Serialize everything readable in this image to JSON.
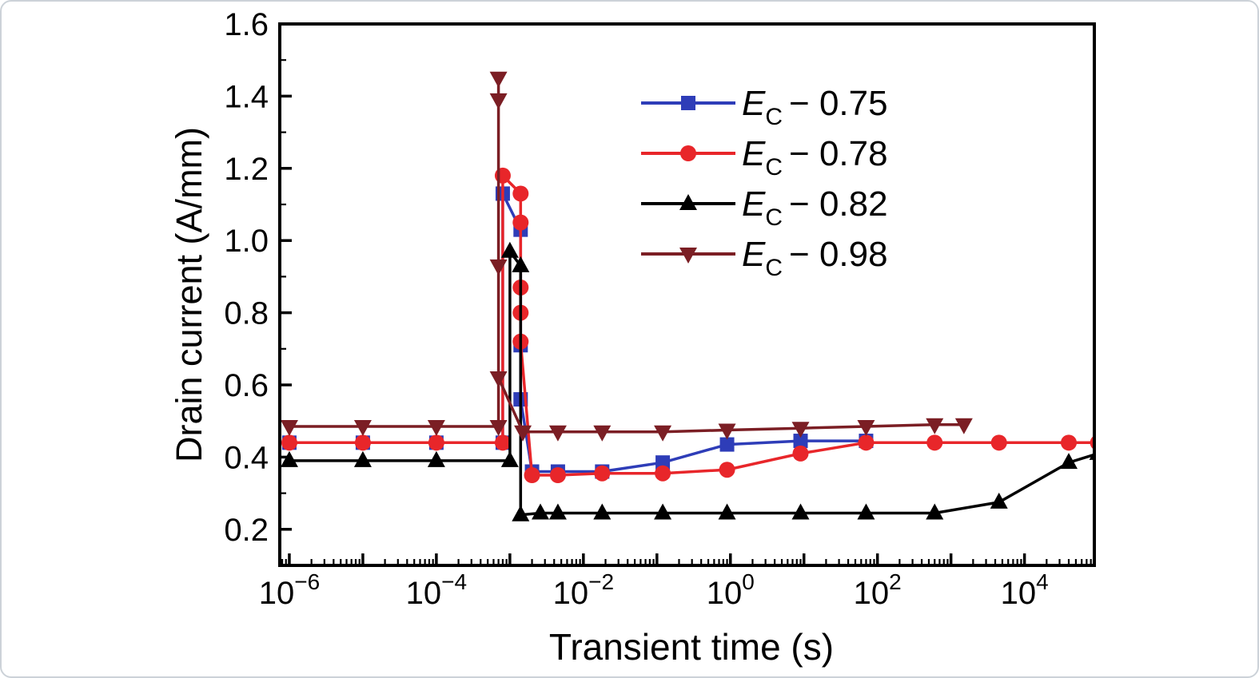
{
  "figure": {
    "background": "#ffffff",
    "frame_color": "#000000",
    "outer_border_color": "#ccd2d8"
  },
  "chart_data": {
    "type": "line",
    "title": "",
    "xlabel": "Transient time (s)",
    "ylabel": "Drain current (A/mm)",
    "x_scale": "log",
    "grid": false,
    "legend_position": "upper-right-inside",
    "xlim_log": [
      -6.13,
      4.95
    ],
    "ylim": [
      0.1,
      1.6
    ],
    "x_tick_exponents": [
      -6,
      -4,
      -2,
      0,
      2,
      4
    ],
    "x_tick_labels": [
      "10⁻⁶",
      "10⁻⁴",
      "10⁻²",
      "10⁰",
      "10²",
      "10⁴"
    ],
    "y_ticks": [
      0.2,
      0.4,
      0.6,
      0.8,
      1.0,
      1.2,
      1.4,
      1.6
    ],
    "series": [
      {
        "name": "Ec-0.75",
        "label": {
          "base": "E",
          "sub": "C",
          "suffix": "− 0.75"
        },
        "color": "#2e3db8",
        "marker": "square",
        "points": [
          [
            1e-06,
            0.44
          ],
          [
            1e-05,
            0.44
          ],
          [
            0.0001,
            0.44
          ],
          [
            0.0008,
            0.44
          ],
          [
            0.0008,
            1.13
          ],
          [
            0.0014,
            1.03
          ],
          [
            0.0014,
            0.71
          ],
          [
            0.0014,
            0.56
          ],
          [
            0.002,
            0.36
          ],
          [
            0.0045,
            0.36
          ],
          [
            0.018,
            0.36
          ],
          [
            0.12,
            0.385
          ],
          [
            0.9,
            0.435
          ],
          [
            9,
            0.445
          ],
          [
            70,
            0.445
          ]
        ]
      },
      {
        "name": "Ec-0.78",
        "label": {
          "base": "E",
          "sub": "C",
          "suffix": "− 0.78"
        },
        "color": "#e8262a",
        "marker": "circle",
        "points": [
          [
            1e-06,
            0.44
          ],
          [
            1e-05,
            0.44
          ],
          [
            0.0001,
            0.44
          ],
          [
            0.0008,
            0.44
          ],
          [
            0.0008,
            1.18
          ],
          [
            0.0014,
            1.13
          ],
          [
            0.0014,
            1.05
          ],
          [
            0.0014,
            0.87
          ],
          [
            0.0014,
            0.8
          ],
          [
            0.0014,
            0.72
          ],
          [
            0.002,
            0.35
          ],
          [
            0.0045,
            0.35
          ],
          [
            0.018,
            0.355
          ],
          [
            0.12,
            0.355
          ],
          [
            0.9,
            0.365
          ],
          [
            9,
            0.41
          ],
          [
            70,
            0.44
          ],
          [
            600.0,
            0.44
          ],
          [
            4500.0,
            0.44
          ],
          [
            40000.0,
            0.44
          ],
          [
            100000.0,
            0.44
          ]
        ]
      },
      {
        "name": "Ec-0.82",
        "label": {
          "base": "E",
          "sub": "C",
          "suffix": "− 0.82"
        },
        "color": "#000000",
        "marker": "triangle-up",
        "points": [
          [
            1e-06,
            0.39
          ],
          [
            1e-05,
            0.39
          ],
          [
            0.0001,
            0.39
          ],
          [
            0.001,
            0.39
          ],
          [
            0.001,
            0.97
          ],
          [
            0.0014,
            0.93
          ],
          [
            0.0014,
            0.24
          ],
          [
            0.0026,
            0.245
          ],
          [
            0.0045,
            0.245
          ],
          [
            0.018,
            0.245
          ],
          [
            0.12,
            0.245
          ],
          [
            0.9,
            0.245
          ],
          [
            9,
            0.245
          ],
          [
            70,
            0.245
          ],
          [
            600.0,
            0.245
          ],
          [
            4500.0,
            0.275
          ],
          [
            40000.0,
            0.385
          ],
          [
            100000.0,
            0.41
          ]
        ]
      },
      {
        "name": "Ec-0.98",
        "label": {
          "base": "E",
          "sub": "C",
          "suffix": "− 0.98"
        },
        "color": "#7b1e24",
        "marker": "triangle-down",
        "points": [
          [
            1e-06,
            0.485
          ],
          [
            1e-05,
            0.485
          ],
          [
            0.0001,
            0.485
          ],
          [
            0.0007,
            0.485
          ],
          [
            0.0007,
            1.45
          ],
          [
            0.0007,
            1.39
          ],
          [
            0.0007,
            0.93
          ],
          [
            0.0007,
            0.62
          ],
          [
            0.0015,
            0.47
          ],
          [
            0.0045,
            0.47
          ],
          [
            0.018,
            0.47
          ],
          [
            0.12,
            0.47
          ],
          [
            0.9,
            0.475
          ],
          [
            9,
            0.48
          ],
          [
            70,
            0.485
          ],
          [
            600.0,
            0.49
          ],
          [
            1500.0,
            0.49
          ]
        ]
      }
    ]
  }
}
